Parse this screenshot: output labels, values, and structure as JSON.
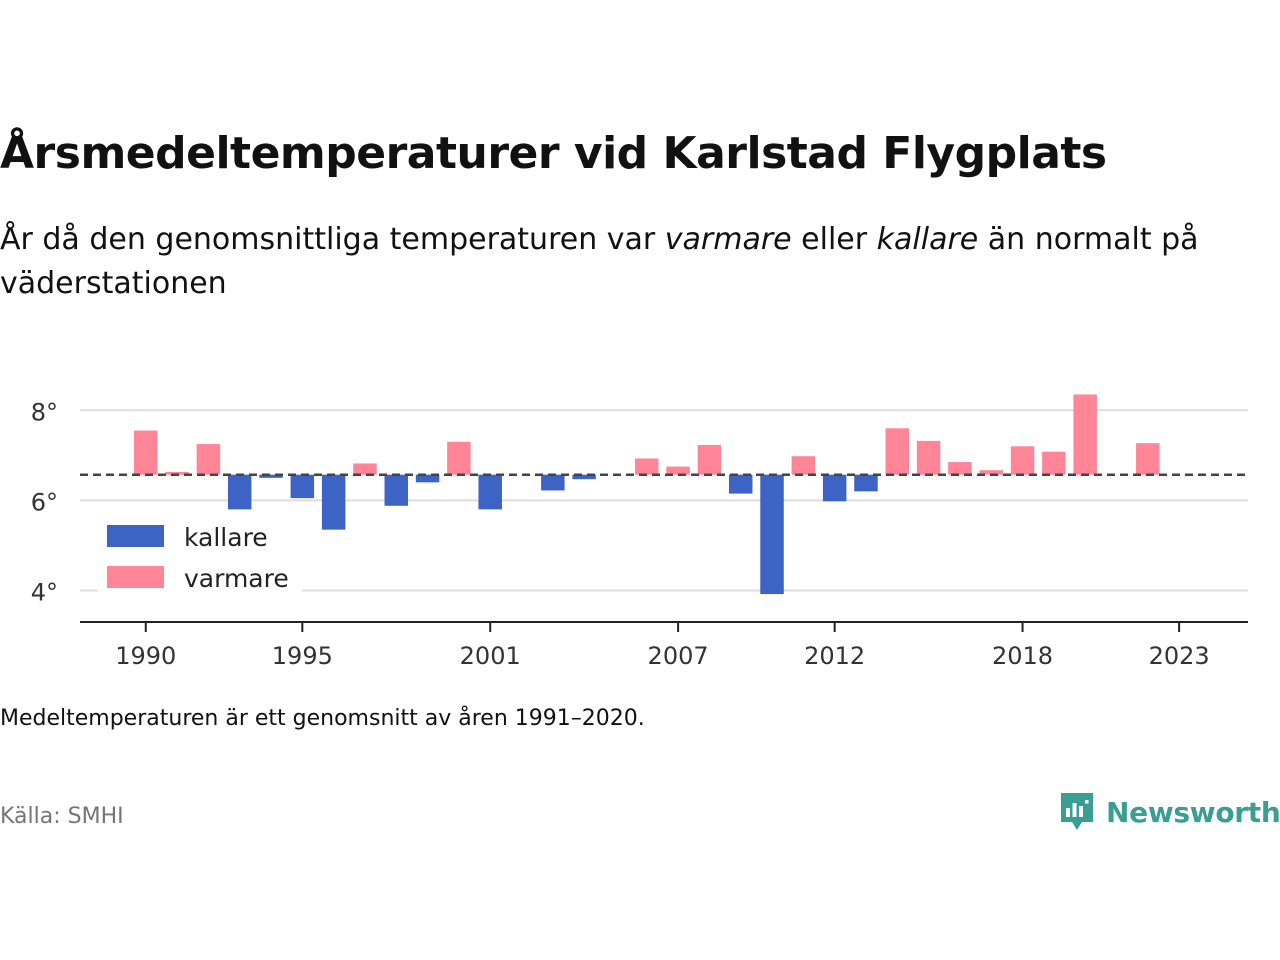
{
  "header": {
    "title": "Årsmedeltemperaturer vid Karlstad Flygplats",
    "subtitle_part1": "År då den genomsnittliga temperaturen var ",
    "subtitle_em1": "varmare",
    "subtitle_part2": " eller ",
    "subtitle_em2": "kallare",
    "subtitle_part3": " än normalt på väderstationen"
  },
  "footer": {
    "note": "Medeltemperaturen är ett genomsnitt av åren 1991–2020.",
    "source": "Källa: SMHI",
    "brand": "Newsworthy"
  },
  "colors": {
    "warmer": "#ff8597",
    "colder": "#3d63c4",
    "reference_line": "#444444",
    "grid": "#dddddd",
    "brand": "#3a9e94"
  },
  "chart_data": {
    "type": "bar",
    "title": "Årsmedeltemperaturer vid Karlstad Flygplats",
    "baseline": 6.57,
    "x": [
      1990,
      1991,
      1992,
      1993,
      1994,
      1995,
      1996,
      1997,
      1998,
      1999,
      2000,
      2001,
      2002,
      2003,
      2004,
      2005,
      2006,
      2007,
      2008,
      2009,
      2010,
      2011,
      2012,
      2013,
      2014,
      2015,
      2016,
      2017,
      2018,
      2019,
      2020,
      2021,
      2022
    ],
    "values": [
      7.55,
      6.63,
      7.25,
      5.8,
      6.5,
      6.05,
      5.35,
      6.82,
      5.88,
      6.4,
      7.3,
      5.8,
      null,
      6.22,
      6.47,
      null,
      6.93,
      6.75,
      7.23,
      6.15,
      3.92,
      6.98,
      5.98,
      6.2,
      7.6,
      7.32,
      6.85,
      6.67,
      7.2,
      7.08,
      8.35,
      null,
      7.27
    ],
    "ylim": [
      3.3,
      8.45
    ],
    "yticks": [
      4,
      6,
      8
    ],
    "ytick_labels": [
      "4°",
      "6°",
      "8°"
    ],
    "xticks": [
      1990,
      1995,
      2001,
      2007,
      2012,
      2018,
      2023
    ],
    "xtick_labels": [
      "1990",
      "1995",
      "2001",
      "2007",
      "2012",
      "2018",
      "2023"
    ],
    "xlim": [
      1987.9,
      2025.2
    ],
    "legend": {
      "position": "bottom-left",
      "entries": [
        {
          "name": "kallare",
          "color": "#3d63c4"
        },
        {
          "name": "varmare",
          "color": "#ff8597"
        }
      ]
    },
    "grid": true,
    "xlabel": "",
    "ylabel": ""
  }
}
